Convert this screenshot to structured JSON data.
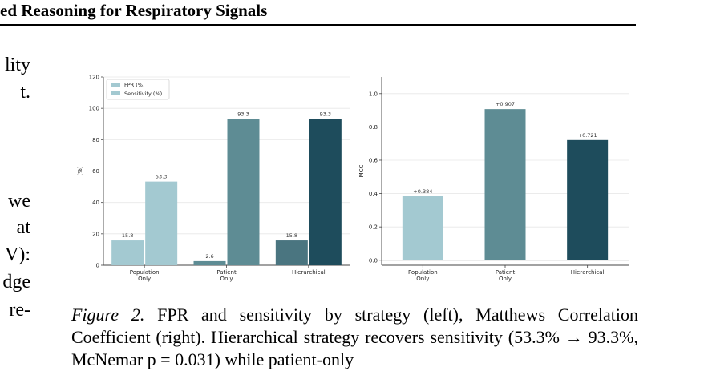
{
  "header": {
    "title": "ed Reasoning for Respiratory Signals"
  },
  "left_text": [
    "lity",
    "t.",
    "we",
    "at",
    "V):",
    "dge",
    "re-"
  ],
  "colors": {
    "population": "#a3c9d1",
    "patient": "#5e8c94",
    "hierarchical": "#1e4c5c",
    "fpr_hierarchical": "#4a7580",
    "axis": "#444444",
    "grid": "#e8e8e8"
  },
  "chart_data": [
    {
      "type": "bar",
      "categories": [
        "Population\nOnly",
        "Patient\nOnly",
        "Hierarchical"
      ],
      "series": [
        {
          "name": "FPR (%)",
          "values": [
            15.8,
            2.6,
            15.8
          ],
          "labels": [
            "15.8",
            "2.6",
            "15.8"
          ]
        },
        {
          "name": "Sensitivity (%)",
          "values": [
            53.3,
            93.3,
            93.3
          ],
          "labels": [
            "53.3",
            "93.3",
            "93.3"
          ]
        }
      ],
      "ylabel": "(%)",
      "ylim": [
        0,
        120
      ],
      "yticks": [
        "0",
        "20",
        "40",
        "60",
        "80",
        "100",
        "120"
      ],
      "grid": true,
      "legend": "top-left"
    },
    {
      "type": "bar",
      "categories": [
        "Population\nOnly",
        "Patient\nOnly",
        "Hierarchical"
      ],
      "values": [
        0.384,
        0.907,
        0.721
      ],
      "labels": [
        "+0.384",
        "+0.907",
        "+0.721"
      ],
      "ylabel": "MCC",
      "ylim": [
        -0.03,
        1.1
      ],
      "yticks": [
        "0.0",
        "0.2",
        "0.4",
        "0.6",
        "0.8",
        "1.0"
      ],
      "grid": true
    }
  ],
  "caption": {
    "label": "Figure 2.",
    "text": "FPR and sensitivity by strategy (left), Matthews Correlation Coefficient (right). Hierarchical strategy recovers sensitivity (53.3% → 93.3%, McNemar p = 0.031) while patient-only"
  }
}
